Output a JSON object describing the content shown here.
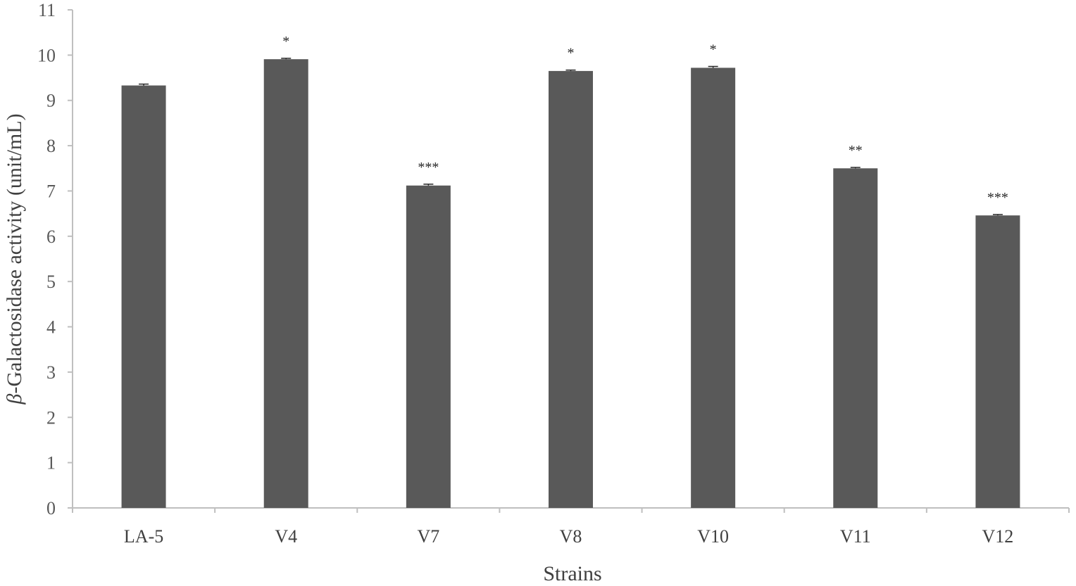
{
  "chart_data": {
    "type": "bar",
    "xlabel": "Strains",
    "ylabel_symbol": "β",
    "ylabel_rest": "-Galactosidase activity (unit/mL)",
    "ylim": [
      0,
      11
    ],
    "yticks": [
      0,
      1,
      2,
      3,
      4,
      5,
      6,
      7,
      8,
      9,
      10,
      11
    ],
    "grid": false,
    "categories": [
      "LA-5",
      "V4",
      "V7",
      "V8",
      "V10",
      "V11",
      "V12"
    ],
    "values": [
      9.33,
      9.91,
      7.12,
      9.65,
      9.72,
      7.5,
      6.46
    ],
    "errors": [
      0.03,
      0.02,
      0.03,
      0.02,
      0.03,
      0.02,
      0.02
    ],
    "significance": [
      "",
      "*",
      "***",
      "*",
      "*",
      "**",
      "***"
    ],
    "colors": {
      "bar": "#595959",
      "axis": "#bfbfbf",
      "error_bar": "#262626"
    }
  }
}
